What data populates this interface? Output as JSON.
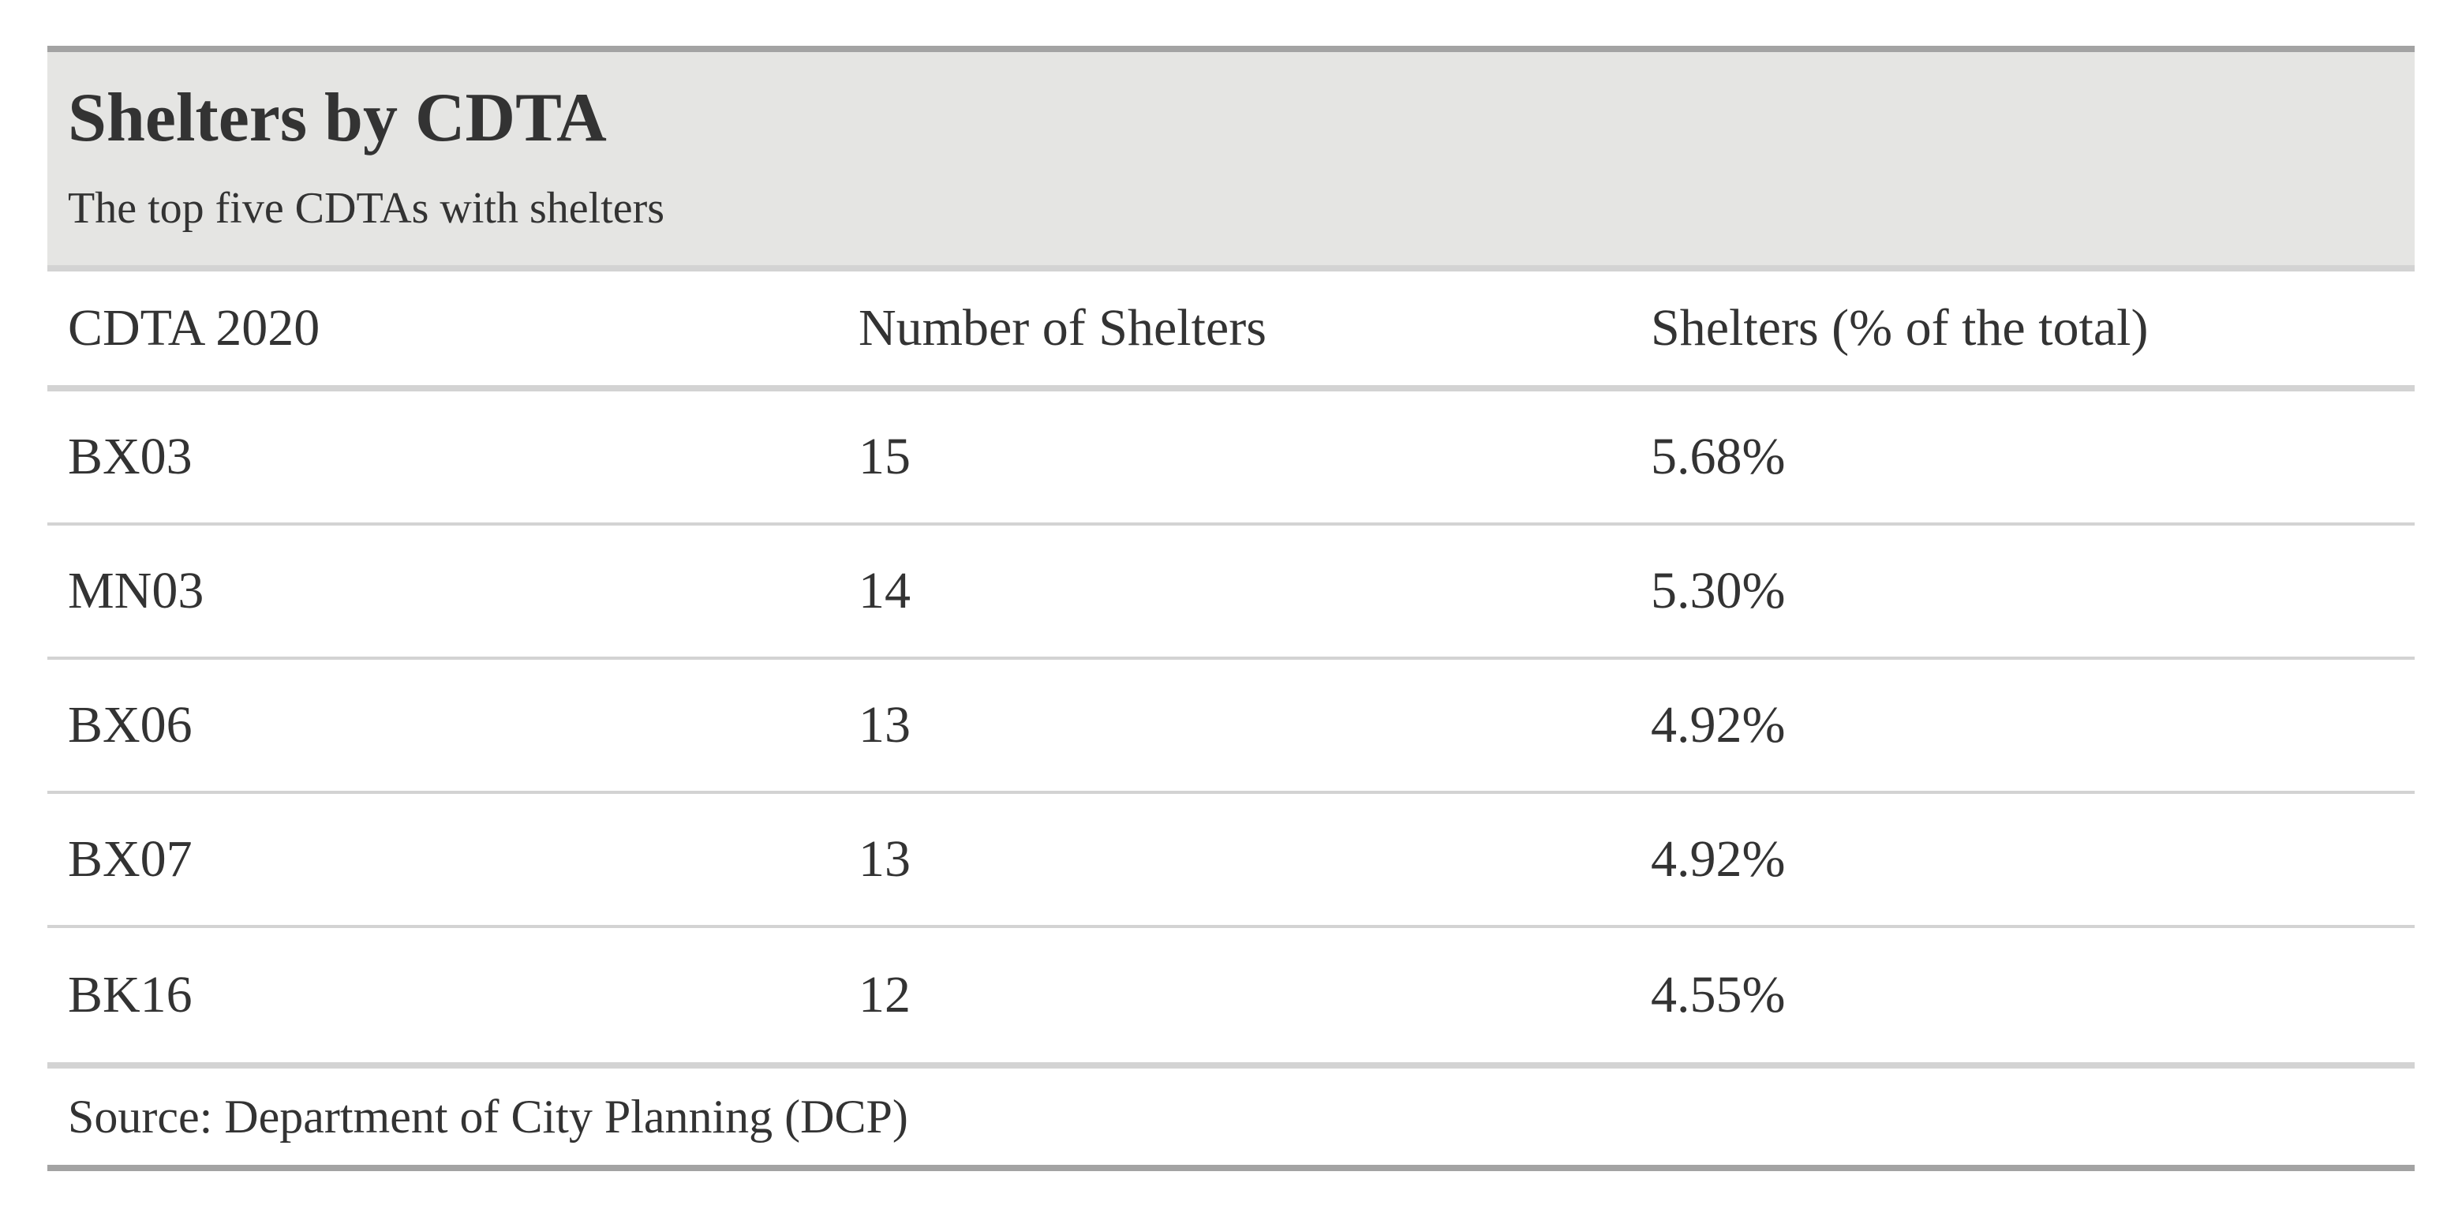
{
  "chart_data": {
    "type": "table",
    "title": "Shelters by CDTA",
    "subtitle": "The top five CDTAs with shelters",
    "columns": [
      "CDTA 2020",
      "Number of Shelters",
      "Shelters (% of the total)"
    ],
    "rows": [
      [
        "BX03",
        "15",
        "5.68%"
      ],
      [
        "MN03",
        "14",
        "5.30%"
      ],
      [
        "BX06",
        "13",
        "4.92%"
      ],
      [
        "BX07",
        "13",
        "4.92%"
      ],
      [
        "BK16",
        "12",
        "4.55%"
      ]
    ],
    "source": "Source: Department of City Planning (DCP)"
  },
  "colors": {
    "title_background": "#e5e5e3",
    "outer_rule": "#a3a3a3",
    "inner_rule": "#d3d3d3",
    "text": "#333333"
  }
}
